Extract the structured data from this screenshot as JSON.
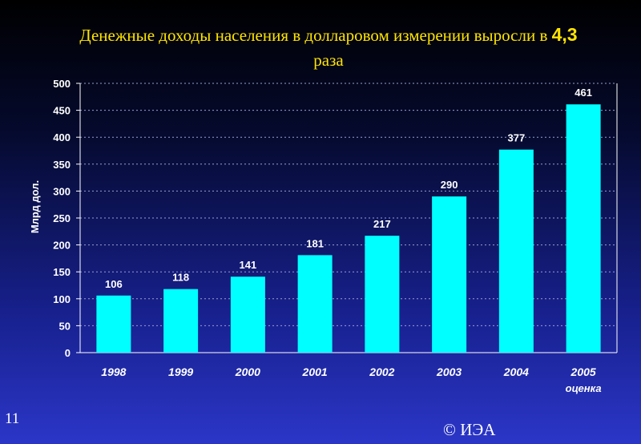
{
  "title": {
    "text": "Денежные доходы населения в долларовом измерении выросли в",
    "accent": "4,3",
    "tail": "раза"
  },
  "colors": {
    "bar": "#00ffff",
    "axis_text": "#ffffff",
    "title": "#ffe400",
    "grid": "#9aa0d0"
  },
  "chart_data": {
    "type": "bar",
    "categories": [
      "1998",
      "1999",
      "2000",
      "2001",
      "2002",
      "2003",
      "2004",
      "2005"
    ],
    "category_sublabels": [
      "",
      "",
      "",
      "",
      "",
      "",
      "",
      "оценка"
    ],
    "values": [
      106,
      118,
      141,
      181,
      217,
      290,
      377,
      461
    ],
    "ylabel": "Млрд дол.",
    "ylim": [
      0,
      500
    ],
    "yticks": [
      0,
      50,
      100,
      150,
      200,
      250,
      300,
      350,
      400,
      450,
      500
    ],
    "grid": true,
    "data_labels": true
  },
  "footer": {
    "copyright": "© ИЭА",
    "slide_number": "11"
  }
}
